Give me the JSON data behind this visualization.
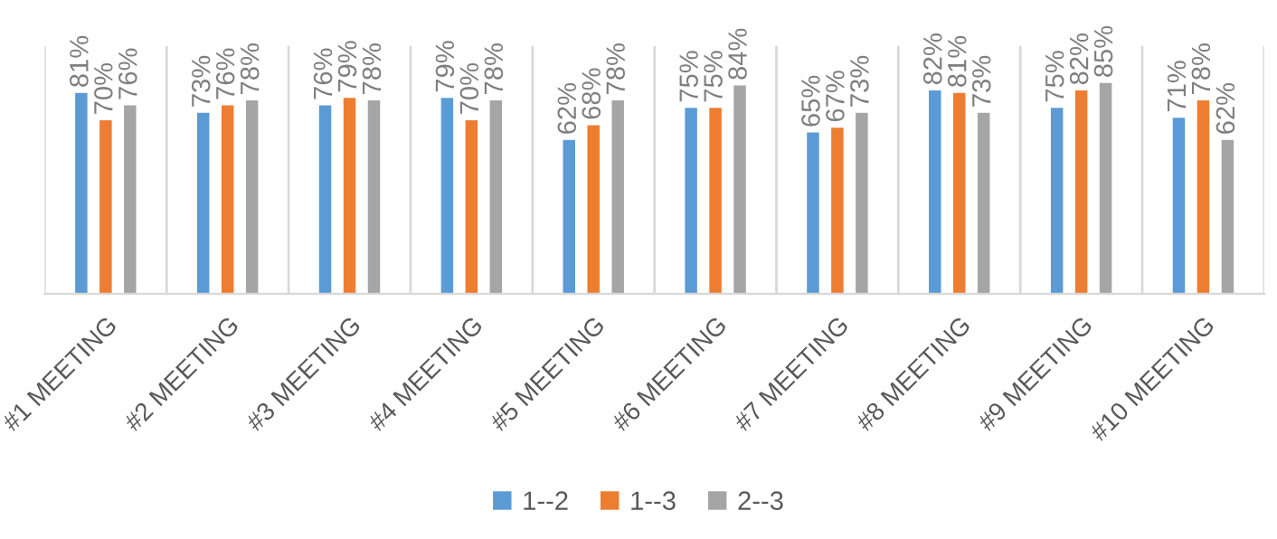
{
  "chart_data": {
    "type": "bar",
    "categories": [
      "#1 MEETING",
      "#2 MEETING",
      "#3 MEETING",
      "#4 MEETING",
      "#5 MEETING",
      "#6 MEETING",
      "#7 MEETING",
      "#8 MEETING",
      "#9 MEETING",
      "#10 MEETING"
    ],
    "series": [
      {
        "name": "1--2",
        "color": "#5b9bd5",
        "values": [
          81,
          73,
          76,
          79,
          62,
          75,
          65,
          82,
          75,
          71
        ],
        "value_labels": [
          "81%",
          "73%",
          "76%",
          "79%",
          "62%",
          "75%",
          "65%",
          "82%",
          "75%",
          "71%"
        ]
      },
      {
        "name": "1--3",
        "color": "#ed7d31",
        "values": [
          70,
          76,
          79,
          70,
          68,
          75,
          67,
          81,
          82,
          78
        ],
        "value_labels": [
          "70%",
          "76%",
          "79%",
          "70%",
          "68%",
          "75%",
          "67%",
          "81%",
          "82%",
          "78%"
        ]
      },
      {
        "name": "2--3",
        "color": "#a5a5a5",
        "values": [
          76,
          78,
          78,
          78,
          78,
          84,
          73,
          73,
          85,
          62
        ],
        "value_labels": [
          "76%",
          "78%",
          "78%",
          "78%",
          "78%",
          "84%",
          "73%",
          "73%",
          "85%",
          "62%"
        ]
      }
    ],
    "ylim": [
      0,
      100
    ],
    "tick_labels": "x",
    "grid": "x",
    "legend": "bottom"
  }
}
